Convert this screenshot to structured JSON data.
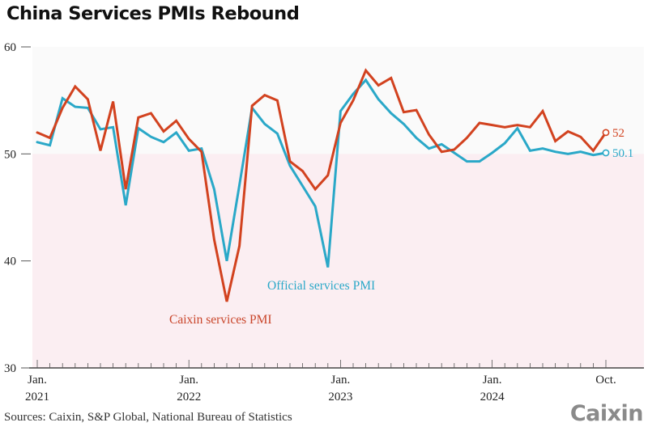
{
  "title": "China Services PMIs Rebound",
  "sources": "Sources: Caixin, S&P Global, National Bureau of Statistics",
  "logo_text": "Caixin",
  "chart_data": {
    "type": "line",
    "title": "China Services PMIs Rebound",
    "xlabel": "",
    "ylabel": "",
    "ylim": [
      30,
      60
    ],
    "yticks": [
      30,
      40,
      50,
      60
    ],
    "ytick_labels": [
      "30",
      "40",
      "50",
      "60"
    ],
    "x_start": "Jan. 2021",
    "x_end": "Oct. 2024",
    "xtick_labels": [
      {
        "month_index": 0,
        "line1": "Jan.",
        "line2": "2021"
      },
      {
        "month_index": 12,
        "line1": "Jan.",
        "line2": "2022"
      },
      {
        "month_index": 24,
        "line1": "Jan.",
        "line2": "2023"
      },
      {
        "month_index": 36,
        "line1": "Jan.",
        "line2": "2024"
      },
      {
        "month_index": 45,
        "line1": "Oct.",
        "line2": ""
      }
    ],
    "shaded_below": 50,
    "grid": false,
    "series": [
      {
        "name": "Caixin services PMI",
        "color": "#d2421f",
        "end_label": "52",
        "values": [
          52.0,
          51.5,
          54.3,
          56.3,
          55.1,
          50.3,
          54.9,
          46.7,
          53.4,
          53.8,
          52.1,
          53.1,
          51.4,
          50.2,
          42.0,
          36.2,
          41.4,
          54.5,
          55.5,
          55.0,
          49.3,
          48.4,
          46.7,
          48.0,
          52.9,
          55.0,
          57.8,
          56.4,
          57.1,
          53.9,
          54.1,
          51.8,
          50.2,
          50.4,
          51.5,
          52.9,
          52.7,
          52.5,
          52.7,
          52.5,
          54.0,
          51.2,
          52.1,
          51.6,
          50.3,
          52.0
        ]
      },
      {
        "name": "Official services PMI",
        "color": "#2aa8c8",
        "end_label": "50.1",
        "values": [
          51.1,
          50.8,
          55.2,
          54.4,
          54.3,
          52.3,
          52.5,
          45.2,
          52.4,
          51.6,
          51.1,
          52.0,
          50.3,
          50.5,
          46.7,
          40.0,
          47.1,
          54.3,
          52.8,
          51.9,
          48.9,
          47.0,
          45.1,
          39.4,
          54.0,
          55.6,
          56.9,
          55.1,
          53.8,
          52.8,
          51.5,
          50.5,
          50.9,
          50.1,
          49.3,
          49.3,
          50.1,
          51.0,
          52.4,
          50.3,
          50.5,
          50.2,
          50.0,
          50.2,
          49.9,
          50.1
        ]
      }
    ],
    "annotations": [
      {
        "text": "Official services PMI",
        "series": "Official services PMI"
      },
      {
        "text": "Caixin services PMI",
        "series": "Caixin services PMI"
      }
    ]
  }
}
